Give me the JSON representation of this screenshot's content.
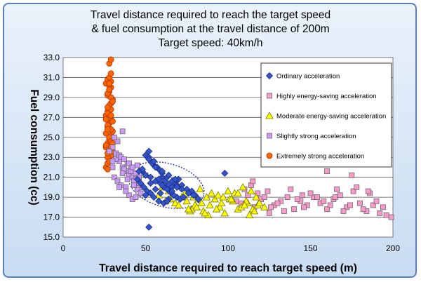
{
  "chart_data": {
    "type": "scatter",
    "title_lines": [
      "Travel distance required to reach the target speed",
      "& fuel consumption at the travel distance of 200m",
      "Target speed: 40km/h"
    ],
    "xlabel": "Travel distance required to reach target speed (m)",
    "ylabel": "Fuel consumption (cc)",
    "xlim": [
      0,
      200
    ],
    "ylim": [
      15,
      33
    ],
    "x_ticks": [
      "0",
      "50",
      "100",
      "150",
      "200"
    ],
    "y_ticks": [
      "15.0",
      "17.0",
      "19.0",
      "21.0",
      "23.0",
      "25.0",
      "27.0",
      "29.0",
      "31.0",
      "33.0"
    ],
    "grid": "horizontal",
    "legend_position": "upper-right",
    "series": [
      {
        "name": "Ordinary acceleration",
        "marker": "diamond",
        "color": "#3355cc",
        "x": [
          50,
          52,
          55,
          58,
          60,
          62,
          64,
          66,
          68,
          70,
          72,
          75,
          78,
          80,
          48,
          50,
          53,
          56,
          59,
          61,
          63,
          65,
          67,
          69,
          71,
          73,
          76,
          79,
          82,
          54,
          57,
          60,
          63,
          66,
          69,
          72,
          45,
          47,
          49,
          51,
          53,
          55,
          58,
          61,
          64,
          67,
          46,
          48,
          52,
          56,
          60,
          64,
          68,
          52,
          55,
          58,
          50,
          53,
          56,
          59,
          98,
          60,
          63,
          66,
          69,
          52
        ],
        "y": [
          23.2,
          23.0,
          22.2,
          21.8,
          21.0,
          20.6,
          20.2,
          20.0,
          20.4,
          20.8,
          20.2,
          19.8,
          19.6,
          19.2,
          21.6,
          21.2,
          21.0,
          20.6,
          20.4,
          20.0,
          19.8,
          19.5,
          19.2,
          19.0,
          18.8,
          19.0,
          19.4,
          19.2,
          18.8,
          22.4,
          22.0,
          21.4,
          21.0,
          20.6,
          20.2,
          19.8,
          20.8,
          20.4,
          20.0,
          19.6,
          19.4,
          19.0,
          18.6,
          18.4,
          18.8,
          19.2,
          21.6,
          21.8,
          22.8,
          22.0,
          21.6,
          21.2,
          20.8,
          23.6,
          22.6,
          20.8,
          19.2,
          20.4,
          19.8,
          19.4,
          21.4,
          20.2,
          18.6,
          19.6,
          20.0,
          16.0
        ]
      },
      {
        "name": "Highly energy-saving acceleration",
        "marker": "square",
        "color": "#ff99cc",
        "x": [
          108,
          112,
          116,
          120,
          124,
          128,
          132,
          136,
          140,
          144,
          148,
          152,
          156,
          160,
          164,
          168,
          172,
          176,
          180,
          184,
          188,
          192,
          196,
          199,
          110,
          118,
          126,
          134,
          142,
          150,
          158,
          166,
          174,
          182,
          190,
          114,
          122,
          130,
          138,
          146,
          154,
          162,
          170,
          178,
          186,
          194,
          160,
          175,
          115,
          125,
          145,
          165,
          185,
          105
        ],
        "y": [
          18.4,
          19.2,
          18.0,
          18.8,
          19.6,
          18.2,
          18.6,
          19.0,
          17.8,
          18.6,
          18.2,
          19.0,
          18.4,
          17.8,
          18.8,
          19.2,
          18.0,
          19.6,
          18.4,
          17.6,
          18.2,
          17.4,
          17.2,
          17.0,
          19.8,
          19.4,
          18.0,
          17.6,
          18.8,
          19.4,
          18.6,
          19.8,
          18.2,
          17.8,
          18.6,
          20.2,
          19.0,
          18.4,
          19.8,
          18.0,
          19.0,
          18.2,
          17.6,
          20.0,
          19.4,
          18.0,
          21.6,
          21.2,
          20.6,
          17.4,
          19.2,
          19.0,
          19.6,
          18.6
        ]
      },
      {
        "name": "Moderate energy-saving acceleration",
        "marker": "triangle",
        "color": "#ffff00",
        "x": [
          58,
          62,
          65,
          68,
          72,
          75,
          78,
          80,
          82,
          85,
          88,
          90,
          92,
          95,
          98,
          100,
          103,
          106,
          109,
          112,
          115,
          118,
          60,
          64,
          70,
          74,
          77,
          84,
          87,
          94,
          96,
          101,
          104,
          108,
          111,
          114,
          116,
          119,
          122,
          79,
          83,
          86,
          89,
          93,
          97,
          102,
          106,
          110,
          113,
          117,
          76,
          81
        ],
        "y": [
          19.2,
          18.6,
          18.8,
          18.4,
          19.0,
          18.6,
          17.8,
          18.2,
          18.8,
          17.6,
          17.2,
          19.4,
          18.8,
          18.0,
          17.4,
          19.6,
          18.6,
          17.8,
          20.0,
          18.4,
          17.8,
          18.2,
          20.0,
          19.6,
          18.2,
          19.4,
          17.6,
          18.4,
          19.0,
          19.2,
          18.4,
          18.8,
          19.4,
          18.0,
          18.6,
          19.6,
          17.6,
          18.4,
          18.0,
          19.0,
          19.8,
          17.4,
          18.2,
          17.8,
          19.0,
          18.8,
          19.4,
          18.2,
          17.2,
          19.0,
          17.8,
          18.0
        ]
      },
      {
        "name": "Slightly strong acceleration",
        "marker": "square",
        "color": "#cc99ff",
        "x": [
          30,
          32,
          34,
          36,
          38,
          40,
          42,
          44,
          46,
          31,
          33,
          35,
          37,
          39,
          41,
          43,
          45,
          47,
          30,
          32,
          34,
          36,
          38,
          40,
          42,
          44,
          33,
          35,
          37,
          39,
          41,
          43,
          45,
          31,
          36,
          40,
          44,
          48,
          38,
          42,
          46,
          34,
          30,
          50,
          28
        ],
        "y": [
          24.0,
          23.4,
          22.6,
          22.0,
          21.6,
          21.2,
          21.0,
          20.8,
          20.4,
          21.0,
          20.6,
          20.2,
          21.8,
          22.4,
          21.8,
          20.6,
          19.8,
          19.4,
          22.0,
          22.8,
          23.2,
          21.4,
          20.0,
          19.2,
          18.8,
          21.4,
          24.6,
          23.0,
          22.8,
          20.8,
          21.6,
          20.2,
          22.2,
          25.0,
          25.6,
          22.4,
          19.0,
          20.0,
          19.6,
          22.0,
          21.0,
          20.0,
          22.6,
          21.2,
          23.6
        ]
      },
      {
        "name": "Extremely strong acceleration",
        "marker": "circle",
        "color": "#ff6600",
        "x": [
          26,
          27,
          28,
          29,
          30,
          26,
          27,
          28,
          29,
          30,
          27,
          28,
          29,
          26,
          27,
          28,
          29,
          30,
          27,
          28,
          29,
          26,
          27,
          28,
          29,
          30,
          27,
          28,
          29,
          26,
          27,
          28,
          29,
          26,
          27,
          28,
          29,
          30,
          27,
          28,
          29,
          28,
          27,
          26,
          28,
          29,
          27,
          28,
          30,
          29,
          27,
          28,
          29,
          28,
          27,
          29
        ],
        "y": [
          22.0,
          22.4,
          22.8,
          23.2,
          23.6,
          24.0,
          24.4,
          24.8,
          25.2,
          25.6,
          26.0,
          26.4,
          26.8,
          27.2,
          27.6,
          28.0,
          28.4,
          28.8,
          29.2,
          29.6,
          30.0,
          30.4,
          30.8,
          25.0,
          25.8,
          26.6,
          27.4,
          28.2,
          29.0,
          24.2,
          23.0,
          23.8,
          24.6,
          25.4,
          26.2,
          27.0,
          27.8,
          28.6,
          29.4,
          30.2,
          30.6,
          31.0,
          23.4,
          26.8,
          32.4,
          32.8,
          21.8,
          22.6,
          24.4,
          27.2,
          28.0,
          29.8,
          31.4,
          30.4,
          25.8,
          24.0
        ]
      }
    ]
  }
}
